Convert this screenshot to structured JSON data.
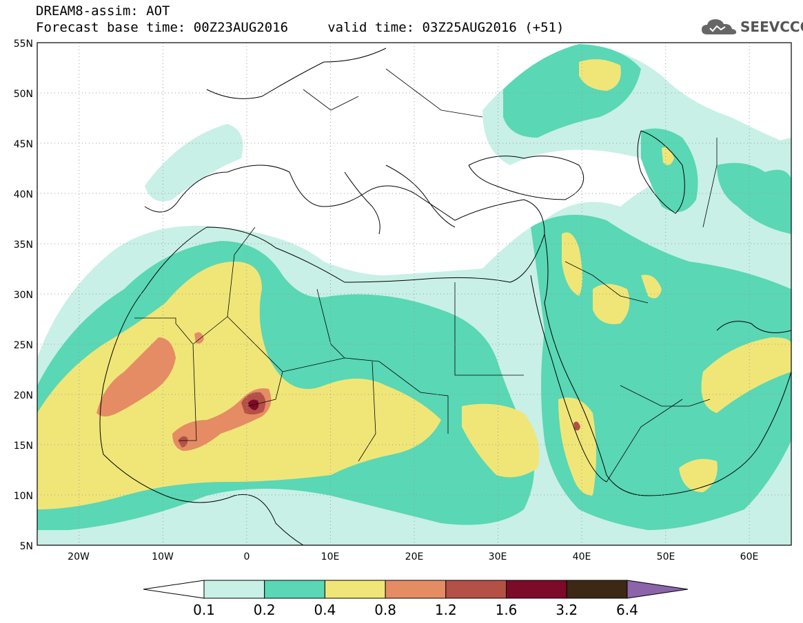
{
  "header": {
    "title": "DREAM8-assim: AOT",
    "subtitle": "Forecast base time: 00Z23AUG2016     valid time: 03Z25AUG2016 (+51)"
  },
  "logo": {
    "text": "SEEVCCC",
    "icon": "cloud-icon"
  },
  "map": {
    "projection": "lat-lon",
    "lon_range": [
      -25,
      65
    ],
    "lat_range": [
      5,
      55
    ],
    "grid": true,
    "lat_ticks": [
      "55N",
      "50N",
      "45N",
      "40N",
      "35N",
      "30N",
      "25N",
      "20N",
      "15N",
      "10N",
      "5N"
    ],
    "lon_ticks": [
      "20W",
      "10W",
      "0",
      "10E",
      "20E",
      "30E",
      "40E",
      "50E",
      "60E"
    ]
  },
  "colorbar": {
    "labels": [
      "0.1",
      "0.2",
      "0.4",
      "0.8",
      "1.2",
      "1.6",
      "3.2",
      "6.4"
    ],
    "colors": [
      "#c8f0e6",
      "#5ad7b4",
      "#f0e678",
      "#e68c64",
      "#b45046",
      "#7d0a28",
      "#3c2814",
      "#8c64aa"
    ]
  }
}
